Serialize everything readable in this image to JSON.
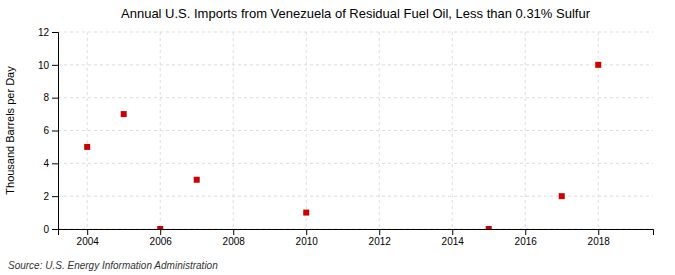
{
  "chart_data": {
    "type": "scatter",
    "title": "Annual U.S. Imports from Venezuela of Residual Fuel Oil, Less than 0.31% Sulfur",
    "ylabel": "Thousand Barrels per Day",
    "source": "Source: U.S. Energy Information Administration",
    "x": [
      2004,
      2005,
      2006,
      2007,
      2010,
      2015,
      2017,
      2018
    ],
    "values": [
      5.0,
      7.0,
      0.0,
      3.0,
      1.0,
      0.0,
      2.0,
      10.0
    ],
    "color": "#cc0000",
    "marker": "square",
    "xlim": [
      2003.2,
      2019.5
    ],
    "ylim": [
      0,
      12
    ],
    "xticks": [
      2004,
      2006,
      2008,
      2010,
      2012,
      2014,
      2016,
      2018
    ],
    "yticks": [
      0,
      2,
      4,
      6,
      8,
      10,
      12
    ],
    "grid": true
  }
}
